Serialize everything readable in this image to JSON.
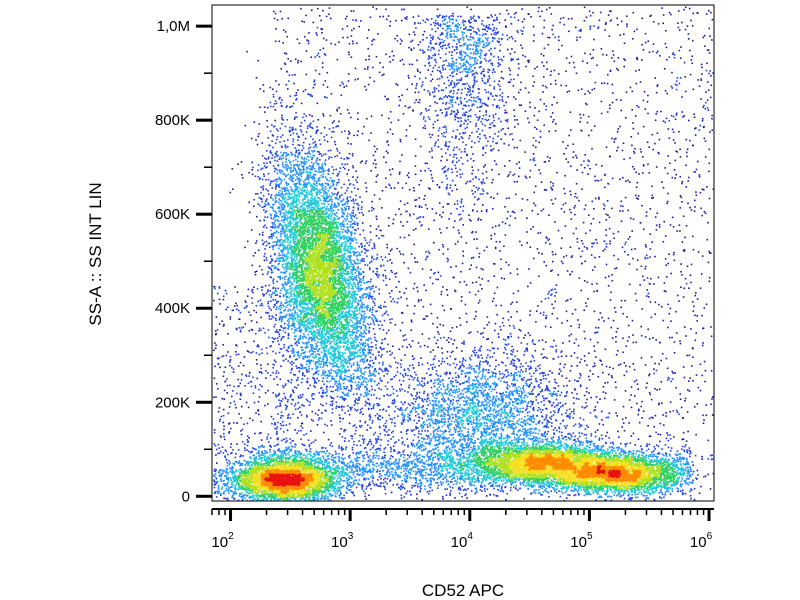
{
  "chart_data": {
    "type": "scatter",
    "subtype": "flow-cytometry density dot plot",
    "xlabel": "CD52 APC",
    "ylabel": "SS-A :: SS INT LIN",
    "x_scale": "log",
    "y_scale": "linear",
    "xlim": [
      70,
      1100000
    ],
    "ylim": [
      -10000,
      1045000
    ],
    "x_ticks": [
      {
        "value": 100,
        "base": "10",
        "exp": "2"
      },
      {
        "value": 1000,
        "base": "10",
        "exp": "3"
      },
      {
        "value": 10000,
        "base": "10",
        "exp": "4"
      },
      {
        "value": 100000,
        "base": "10",
        "exp": "5"
      },
      {
        "value": 1000000,
        "base": "10",
        "exp": "6"
      }
    ],
    "y_ticks": [
      {
        "value": 0,
        "label": "0"
      },
      {
        "value": 200000,
        "label": "200K"
      },
      {
        "value": 400000,
        "label": "400K"
      },
      {
        "value": 600000,
        "label": "600K"
      },
      {
        "value": 800000,
        "label": "800K"
      },
      {
        "value": 1000000,
        "label": "1,0M"
      }
    ],
    "grid": false,
    "legend": "none",
    "density_colormap": [
      "#1a1aa6",
      "#2040e0",
      "#1e90ff",
      "#20c8d8",
      "#30d060",
      "#b0e020",
      "#f5e020",
      "#ff8c00",
      "#e81010"
    ],
    "populations": [
      {
        "center_x": 280,
        "center_y": 35000,
        "density": "high"
      },
      {
        "center_x": 560,
        "center_y": 480000,
        "density": "high"
      },
      {
        "center_x": 12000,
        "center_y": 170000,
        "density": "medium"
      },
      {
        "center_x": 40000,
        "center_y": 72000,
        "density": "high"
      },
      {
        "center_x": 160000,
        "center_y": 48000,
        "density": "high"
      }
    ]
  }
}
